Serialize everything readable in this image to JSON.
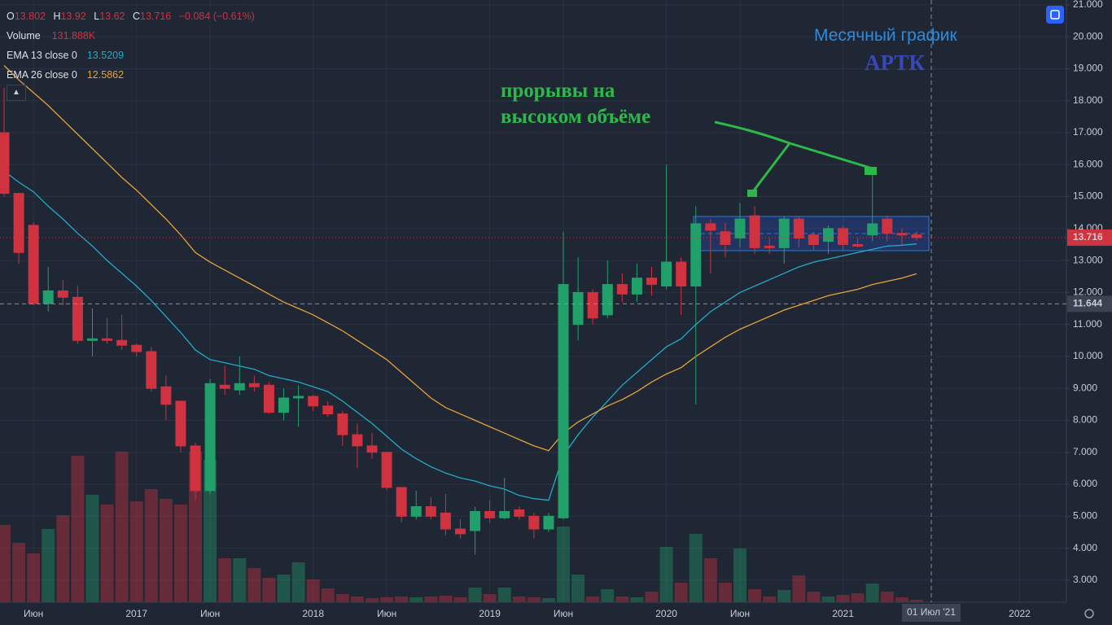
{
  "chart_data": {
    "type": "candlestick",
    "categories": [
      null,
      null,
      "Июн",
      null,
      null,
      null,
      null,
      null,
      null,
      "2017",
      null,
      null,
      null,
      null,
      "Июн",
      null,
      null,
      null,
      null,
      null,
      null,
      "2018",
      null,
      null,
      null,
      null,
      "Июн",
      null,
      null,
      null,
      null,
      null,
      null,
      "2019",
      null,
      null,
      null,
      null,
      "Июн",
      null,
      null,
      null,
      null,
      null,
      null,
      "2020",
      null,
      null,
      null,
      null,
      "Июн",
      null,
      null,
      null,
      null,
      null,
      null,
      "2021",
      null,
      null,
      null,
      null,
      null,
      null,
      null,
      null,
      null,
      null,
      null,
      "2022"
    ],
    "open": [
      17.0,
      15.1,
      14.1,
      11.65,
      12.05,
      11.85,
      10.5,
      10.55,
      10.5,
      10.35,
      10.15,
      9.05,
      8.6,
      7.2,
      5.8,
      9.1,
      8.95,
      9.15,
      9.1,
      8.25,
      8.7,
      8.75,
      8.45,
      8.2,
      7.55,
      7.2,
      7.0,
      5.9,
      5.0,
      5.3,
      5.1,
      4.6,
      4.55,
      5.15,
      4.95,
      5.2,
      5.0,
      4.6,
      4.95,
      11.0,
      12.0,
      11.3,
      12.25,
      11.95,
      12.45,
      12.2,
      12.95,
      12.2,
      14.15,
      13.9,
      13.7,
      14.4,
      13.45,
      13.4,
      14.3,
      13.8,
      13.6,
      14.0,
      13.5,
      13.8,
      14.3,
      13.85,
      13.802,
      null,
      null,
      null,
      null,
      null,
      null,
      null
    ],
    "high": [
      18.4,
      15.1,
      14.2,
      12.8,
      12.4,
      12.2,
      11.5,
      11.2,
      11.3,
      10.4,
      10.3,
      9.4,
      8.6,
      7.3,
      9.3,
      9.7,
      10.0,
      9.4,
      9.2,
      9.0,
      9.1,
      8.8,
      8.6,
      8.3,
      7.9,
      7.6,
      7.0,
      5.9,
      5.8,
      5.6,
      5.7,
      4.9,
      5.3,
      5.5,
      6.2,
      5.3,
      5.1,
      5.1,
      13.9,
      13.1,
      12.1,
      13.0,
      12.6,
      12.9,
      12.8,
      16.0,
      13.1,
      14.7,
      14.3,
      14.2,
      14.8,
      14.7,
      13.7,
      14.4,
      14.4,
      13.9,
      14.1,
      14.1,
      13.7,
      15.8,
      14.4,
      14.0,
      13.92,
      null,
      null,
      null,
      null,
      null,
      null,
      null
    ],
    "low": [
      15.0,
      12.9,
      11.6,
      11.4,
      11.6,
      10.4,
      10.0,
      10.4,
      10.2,
      10.0,
      8.9,
      8.0,
      7.0,
      5.5,
      5.7,
      8.8,
      8.8,
      8.9,
      8.2,
      8.0,
      7.8,
      8.3,
      8.1,
      7.2,
      6.5,
      6.8,
      5.8,
      4.8,
      4.9,
      4.9,
      4.4,
      4.3,
      3.8,
      4.8,
      4.9,
      4.9,
      4.3,
      4.5,
      4.9,
      10.5,
      11.0,
      11.2,
      11.7,
      11.7,
      11.9,
      12.1,
      11.3,
      8.5,
      12.6,
      13.1,
      13.4,
      13.2,
      13.2,
      12.9,
      13.4,
      13.3,
      13.2,
      13.3,
      13.4,
      13.6,
      13.6,
      13.5,
      13.62,
      null,
      null,
      null,
      null,
      null,
      null,
      null
    ],
    "close": [
      15.1,
      13.25,
      11.65,
      12.05,
      11.85,
      10.5,
      10.55,
      10.5,
      10.35,
      10.15,
      9.0,
      8.5,
      7.2,
      5.8,
      9.15,
      9.0,
      9.15,
      9.05,
      8.25,
      8.7,
      8.75,
      8.45,
      8.2,
      7.55,
      7.2,
      7.0,
      5.9,
      5.0,
      5.3,
      5.0,
      4.6,
      4.45,
      5.15,
      4.95,
      5.15,
      5.0,
      4.6,
      5.0,
      12.25,
      12.0,
      11.2,
      12.25,
      11.95,
      12.45,
      12.25,
      12.95,
      12.2,
      14.15,
      13.95,
      13.5,
      14.3,
      13.4,
      13.4,
      14.3,
      13.7,
      13.5,
      14.0,
      13.5,
      13.45,
      14.15,
      13.85,
      13.8,
      13.716,
      null,
      null,
      null,
      null,
      null,
      null,
      null
    ],
    "volume": [
      4180000,
      3212000,
      2640000,
      3960000,
      4708000,
      7920000,
      5808000,
      5280000,
      8140000,
      5456000,
      6116000,
      5588000,
      5280000,
      8140000,
      7700000,
      2376000,
      2376000,
      1848000,
      1320000,
      1496000,
      2156000,
      1232000,
      748000,
      440000,
      308000,
      220000,
      264000,
      308000,
      264000,
      308000,
      352000,
      264000,
      792000,
      440000,
      792000,
      308000,
      264000,
      220000,
      4092000,
      1496000,
      308000,
      704000,
      308000,
      264000,
      572000,
      2992000,
      1056000,
      3696000,
      2376000,
      1056000,
      2904000,
      704000,
      308000,
      660000,
      1452000,
      572000,
      308000,
      396000,
      484000,
      1012000,
      572000,
      264000,
      131888,
      null,
      null,
      null,
      null,
      null,
      null,
      null
    ],
    "up_color": "#22a06b",
    "down_color": "#d1323f",
    "series": [
      {
        "name": "EMA 13 close 0",
        "color": "#26a9c9",
        "values": [
          15.8,
          15.45,
          15.15,
          14.7,
          14.3,
          13.85,
          13.45,
          13.0,
          12.6,
          12.2,
          11.75,
          11.25,
          10.75,
          10.2,
          9.9,
          9.8,
          9.7,
          9.6,
          9.4,
          9.3,
          9.2,
          9.05,
          8.9,
          8.6,
          8.25,
          7.9,
          7.5,
          7.1,
          6.8,
          6.55,
          6.35,
          6.2,
          6.1,
          5.95,
          5.85,
          5.65,
          5.55,
          5.5,
          6.9,
          7.55,
          8.1,
          8.6,
          9.1,
          9.5,
          9.9,
          10.3,
          10.55,
          11.0,
          11.4,
          11.7,
          12.0,
          12.2,
          12.4,
          12.6,
          12.8,
          12.95,
          13.05,
          13.15,
          13.25,
          13.35,
          13.45,
          13.48,
          13.5209,
          null,
          null,
          null,
          null,
          null,
          null,
          null
        ]
      },
      {
        "name": "EMA 26 close 0",
        "color": "#e8a23a",
        "values": [
          19.1,
          18.65,
          18.25,
          17.85,
          17.4,
          16.95,
          16.5,
          16.05,
          15.6,
          15.2,
          14.75,
          14.3,
          13.8,
          13.25,
          12.95,
          12.7,
          12.45,
          12.2,
          11.95,
          11.7,
          11.5,
          11.3,
          11.05,
          10.8,
          10.5,
          10.2,
          9.9,
          9.5,
          9.1,
          8.7,
          8.4,
          8.2,
          8.0,
          7.8,
          7.6,
          7.4,
          7.2,
          7.05,
          7.6,
          7.95,
          8.2,
          8.45,
          8.65,
          8.9,
          9.2,
          9.45,
          9.65,
          10.0,
          10.3,
          10.6,
          10.85,
          11.05,
          11.25,
          11.45,
          11.6,
          11.75,
          11.9,
          12.0,
          12.1,
          12.25,
          12.35,
          12.45,
          12.5862,
          null,
          null,
          null,
          null,
          null,
          null,
          null
        ]
      }
    ],
    "legend": {
      "o": "O",
      "h": "H",
      "l": "L",
      "c": "C",
      "change": "−0.084 (−0.61%)",
      "volume": "Volume",
      "volume_value": "131.888K"
    },
    "crosshair": {
      "price": 11.644,
      "x_label": "01 Июл '21"
    },
    "annotations": {
      "breakouts_line1": "прорывы на",
      "breakouts_line2": "высоком объёме",
      "chart_kind": "Месячный график",
      "ticker": "АРТК"
    },
    "ylim": [
      2.31,
      21.15
    ],
    "yticks": [
      {
        "value": 3,
        "label": "3.000"
      },
      {
        "value": 4,
        "label": "4.000"
      },
      {
        "value": 5,
        "label": "5.000"
      },
      {
        "value": 6,
        "label": "6.000"
      },
      {
        "value": 7,
        "label": "7.000"
      },
      {
        "value": 8,
        "label": "8.000"
      },
      {
        "value": 9,
        "label": "9.000"
      },
      {
        "value": 10,
        "label": "10.000"
      },
      {
        "value": 11,
        "label": "11.000"
      },
      {
        "value": 12,
        "label": "12.000"
      },
      {
        "value": 13,
        "label": "13.000"
      },
      {
        "value": 14,
        "label": "14.000"
      },
      {
        "value": 15,
        "label": "15.000"
      },
      {
        "value": 16,
        "label": "16.000"
      },
      {
        "value": 17,
        "label": "17.000"
      },
      {
        "value": 18,
        "label": "18.000"
      },
      {
        "value": 19,
        "label": "19.000"
      },
      {
        "value": 20,
        "label": "20.000"
      },
      {
        "value": 21,
        "label": "21.000"
      }
    ],
    "grid": true
  }
}
